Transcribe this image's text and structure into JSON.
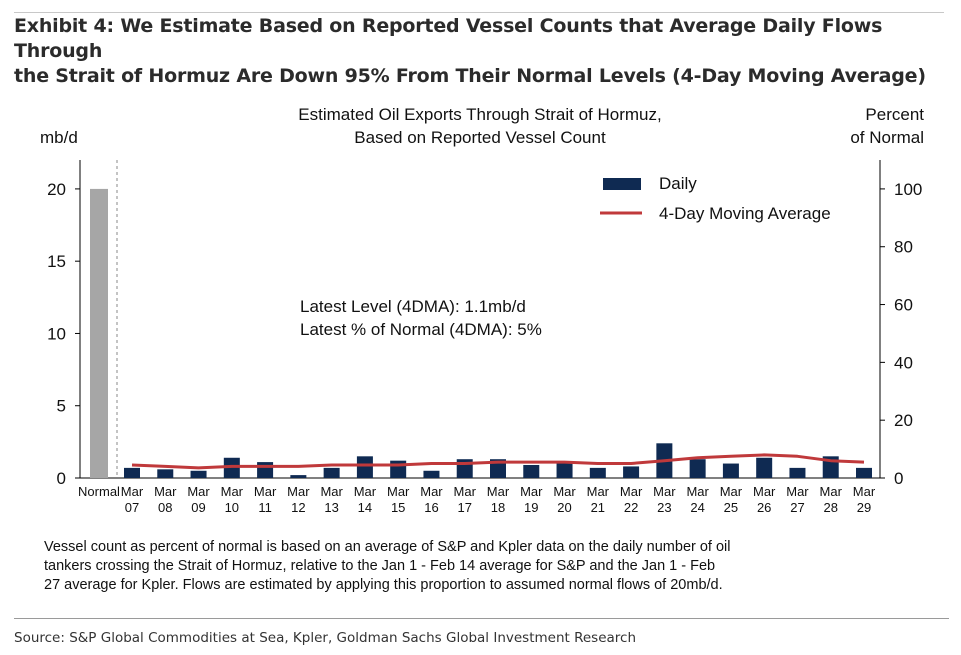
{
  "exhibit": {
    "title_line1": "Exhibit 4: We Estimate Based on Reported Vessel Counts that Average Daily Flows Through",
    "title_line2": "the Strait of Hormuz Are Down 95% From Their Normal Levels (4-Day Moving Average)"
  },
  "chart_data": {
    "type": "bar",
    "title_line1": "Estimated Oil Exports Through Strait of Hormuz,",
    "title_line2": "Based on Reported Vessel Count",
    "left_axis_label": "mb/d",
    "right_axis_label_line1": "Percent",
    "right_axis_label_line2": "of Normal",
    "left_ylim": [
      0,
      22
    ],
    "left_ticks": [
      0,
      5,
      10,
      15,
      20
    ],
    "right_ylim": [
      0,
      110
    ],
    "right_ticks": [
      0,
      20,
      40,
      60,
      80,
      100
    ],
    "normal": {
      "label": "Normal",
      "value": 20,
      "color": "#a6a6a6"
    },
    "categories": [
      [
        "Mar",
        "07"
      ],
      [
        "Mar",
        "08"
      ],
      [
        "Mar",
        "09"
      ],
      [
        "Mar",
        "10"
      ],
      [
        "Mar",
        "11"
      ],
      [
        "Mar",
        "12"
      ],
      [
        "Mar",
        "13"
      ],
      [
        "Mar",
        "14"
      ],
      [
        "Mar",
        "15"
      ],
      [
        "Mar",
        "16"
      ],
      [
        "Mar",
        "17"
      ],
      [
        "Mar",
        "18"
      ],
      [
        "Mar",
        "19"
      ],
      [
        "Mar",
        "20"
      ],
      [
        "Mar",
        "21"
      ],
      [
        "Mar",
        "22"
      ],
      [
        "Mar",
        "23"
      ],
      [
        "Mar",
        "24"
      ],
      [
        "Mar",
        "25"
      ],
      [
        "Mar",
        "26"
      ],
      [
        "Mar",
        "27"
      ],
      [
        "Mar",
        "28"
      ],
      [
        "Mar",
        "29"
      ]
    ],
    "series": [
      {
        "name": "Daily",
        "kind": "bar",
        "color": "#0f2a52",
        "values": [
          0.7,
          0.6,
          0.5,
          1.4,
          1.1,
          0.2,
          0.7,
          1.5,
          1.2,
          0.5,
          1.3,
          1.3,
          0.9,
          1.1,
          0.7,
          0.8,
          2.4,
          1.3,
          1.0,
          1.4,
          0.7,
          1.5,
          0.7
        ]
      },
      {
        "name": "4-Day Moving Average",
        "kind": "line",
        "color": "#c0393b",
        "values": [
          0.9,
          0.8,
          0.7,
          0.8,
          0.8,
          0.8,
          0.9,
          0.9,
          0.9,
          1.0,
          1.0,
          1.1,
          1.1,
          1.1,
          1.0,
          1.0,
          1.2,
          1.4,
          1.5,
          1.6,
          1.5,
          1.2,
          1.1
        ]
      }
    ],
    "annotation_line1": "Latest Level (4DMA): 1.1mb/d",
    "annotation_line2": "Latest % of Normal (4DMA): 5%",
    "legend_position": "top-right"
  },
  "footnote": {
    "line1": "Vessel count as percent of normal is based on an average of S&P and Kpler data on the daily number of oil",
    "line2": "tankers crossing the Strait of Hormuz, relative to the Jan 1 - Feb 14 average for S&P and the Jan 1 - Feb",
    "line3": "27 average for Kpler. Flows are estimated by applying this proportion to assumed normal flows of 20mb/d."
  },
  "source": "Source: S&P Global Commodities at Sea, Kpler, Goldman Sachs Global Investment Research"
}
